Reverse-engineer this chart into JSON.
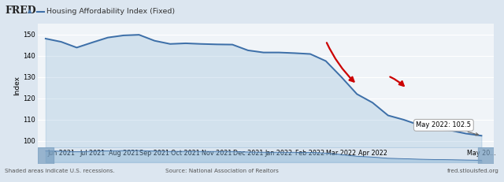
{
  "title": "Housing Affordability Index (Fixed)",
  "fred_label": "FRED",
  "ylabel": "Index",
  "background_color": "#dce6f0",
  "plot_bg_color": "#f0f4f8",
  "line_color": "#3d6fa8",
  "fill_color": "#7aaad0",
  "x_labels": [
    "Jun 2021",
    "Jul 2021",
    "Aug 2021",
    "Sep 2021",
    "Oct 2021",
    "Nov 2021",
    "Dec 2021",
    "Jan 2022",
    "Feb 2022",
    "Mar 2022",
    "Apr 2022",
    "May 20..."
  ],
  "x_tick_pos": [
    1,
    3,
    5,
    7,
    9,
    11,
    13,
    15,
    17,
    19,
    21,
    28
  ],
  "yticks": [
    100,
    110,
    120,
    130,
    140,
    150
  ],
  "ylim": [
    97,
    155
  ],
  "source_text": "Source: National Association of Realtors",
  "shaded_text": "Shaded areas indicate U.S. recessions.",
  "url_text": "fred.stlouisfed.org",
  "tooltip_text": "May 2022: 102.5",
  "arrow_color": "#cc0000",
  "grid_color": "#ffffff",
  "data_x": [
    0,
    1,
    2,
    3,
    4,
    5,
    6,
    7,
    8,
    9,
    10,
    11,
    12,
    13,
    14,
    15,
    16,
    17,
    18,
    19,
    20,
    21,
    22,
    23,
    24,
    25,
    26,
    27,
    28
  ],
  "data_y": [
    148.0,
    146.5,
    143.8,
    146.2,
    148.5,
    149.5,
    149.8,
    147.0,
    145.5,
    145.8,
    145.5,
    145.3,
    145.2,
    142.5,
    141.5,
    141.5,
    141.2,
    140.8,
    137.5,
    130.0,
    122.0,
    118.0,
    112.0,
    110.0,
    107.5,
    106.0,
    105.0,
    103.5,
    102.5
  ],
  "nav_bg": "#c5d5e5",
  "header_bg": "#dce6f0",
  "footer_bg": "#dce6f0"
}
